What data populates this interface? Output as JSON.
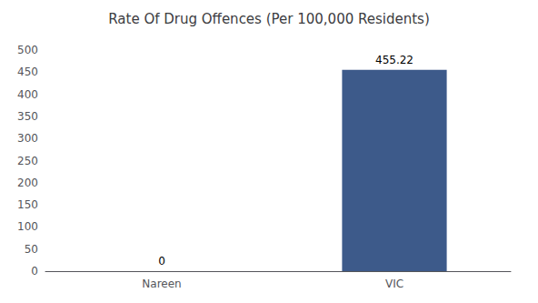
{
  "chart_data": {
    "type": "bar",
    "title": "Rate Of Drug Offences (Per 100,000 Residents)",
    "categories": [
      "Nareen",
      "VIC"
    ],
    "values": [
      0,
      455.22
    ],
    "color": "#3d5a8a",
    "ylim": [
      0,
      500
    ],
    "yticks": [
      0,
      50,
      100,
      150,
      200,
      250,
      300,
      350,
      400,
      450,
      500
    ],
    "data_labels": true,
    "grid": false
  }
}
